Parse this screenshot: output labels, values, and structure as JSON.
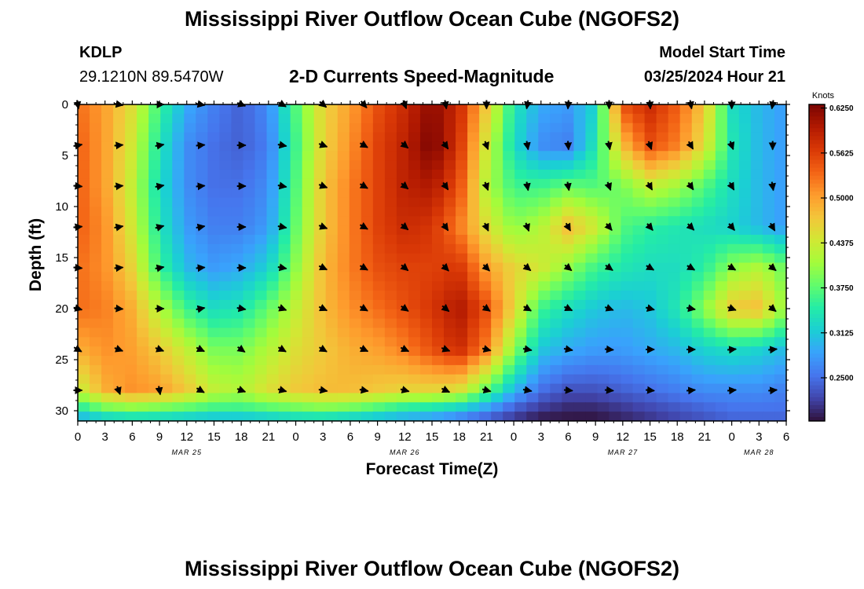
{
  "page": {
    "title_top": "Mississippi River Outflow Ocean Cube (NGOFS2)",
    "title_bottom": "Mississippi River Outflow Ocean Cube (NGOFS2)",
    "station_id": "KDLP",
    "station_coords": "29.1210N  89.5470W",
    "plot_subtitle": "2-D Currents Speed-Magnitude",
    "model_start_label": "Model Start Time",
    "model_start_value": "03/25/2024 Hour 21"
  },
  "chart_data": {
    "type": "heatmap",
    "title": "2-D Currents Speed-Magnitude",
    "xlabel": "Forecast Time(Z)",
    "ylabel": "Depth (ft)",
    "x_ticks": [
      "0",
      "3",
      "6",
      "9",
      "12",
      "15",
      "18",
      "21",
      "0",
      "3",
      "6",
      "9",
      "12",
      "15",
      "18",
      "21",
      "0",
      "3",
      "6",
      "9",
      "12",
      "15",
      "18",
      "21",
      "0",
      "3",
      "6"
    ],
    "date_labels": [
      {
        "text": "MAR 25",
        "tick_index": 4
      },
      {
        "text": "MAR 26",
        "tick_index": 12
      },
      {
        "text": "MAR 27",
        "tick_index": 20
      },
      {
        "text": "MAR 28",
        "tick_index": 25
      }
    ],
    "x_hours_range": [
      0,
      78
    ],
    "y_ticks": [
      0,
      5,
      10,
      15,
      20,
      25,
      30
    ],
    "ylim": [
      0,
      31
    ],
    "y_inverted": true,
    "colorbar": {
      "unit": "Knots",
      "range": [
        0.19,
        0.63
      ],
      "ticks": [
        "0.6250",
        "0.5625",
        "0.5000",
        "0.4375",
        "0.3750",
        "0.3125",
        "0.2500"
      ],
      "tick_values": [
        0.625,
        0.5625,
        0.5,
        0.4375,
        0.375,
        0.3125,
        0.25
      ],
      "colors": [
        "#30123b",
        "#4145ab",
        "#4675ed",
        "#39a2fc",
        "#1bcfd4",
        "#24eca6",
        "#61fc6c",
        "#a4fc3b",
        "#d1e834",
        "#f3c63a",
        "#fe9b2d",
        "#f36315",
        "#d93806",
        "#b11901",
        "#7a0402"
      ]
    },
    "speed_field": {
      "description": "Current speed (knots) at depth rows x forecast hour columns",
      "depths": [
        0,
        4,
        8,
        12,
        16,
        20,
        24,
        28,
        30,
        31
      ],
      "hours": [
        0,
        3,
        6,
        9,
        12,
        15,
        18,
        21,
        24,
        27,
        30,
        33,
        36,
        39,
        42,
        45,
        48,
        51,
        54,
        57,
        60,
        63,
        66,
        69,
        72,
        75,
        78
      ],
      "values": [
        [
          0.53,
          0.5,
          0.45,
          0.36,
          0.29,
          0.26,
          0.24,
          0.27,
          0.37,
          0.46,
          0.5,
          0.55,
          0.58,
          0.62,
          0.58,
          0.47,
          0.34,
          0.29,
          0.28,
          0.32,
          0.55,
          0.58,
          0.54,
          0.47,
          0.33,
          0.3,
          0.28
        ],
        [
          0.54,
          0.5,
          0.44,
          0.34,
          0.27,
          0.25,
          0.24,
          0.26,
          0.36,
          0.46,
          0.51,
          0.56,
          0.59,
          0.63,
          0.57,
          0.44,
          0.33,
          0.27,
          0.26,
          0.34,
          0.48,
          0.55,
          0.52,
          0.45,
          0.34,
          0.3,
          0.28
        ],
        [
          0.54,
          0.5,
          0.43,
          0.33,
          0.27,
          0.25,
          0.25,
          0.27,
          0.37,
          0.47,
          0.52,
          0.56,
          0.59,
          0.6,
          0.55,
          0.42,
          0.36,
          0.36,
          0.38,
          0.37,
          0.39,
          0.43,
          0.41,
          0.37,
          0.33,
          0.3,
          0.28
        ],
        [
          0.54,
          0.51,
          0.44,
          0.34,
          0.28,
          0.26,
          0.26,
          0.28,
          0.38,
          0.47,
          0.52,
          0.56,
          0.58,
          0.57,
          0.52,
          0.45,
          0.4,
          0.42,
          0.48,
          0.44,
          0.37,
          0.35,
          0.34,
          0.33,
          0.32,
          0.3,
          0.28
        ],
        [
          0.53,
          0.51,
          0.46,
          0.36,
          0.3,
          0.28,
          0.29,
          0.32,
          0.4,
          0.48,
          0.52,
          0.55,
          0.56,
          0.56,
          0.57,
          0.5,
          0.46,
          0.44,
          0.4,
          0.36,
          0.34,
          0.33,
          0.33,
          0.35,
          0.4,
          0.42,
          0.38
        ],
        [
          0.53,
          0.52,
          0.49,
          0.42,
          0.36,
          0.33,
          0.34,
          0.38,
          0.43,
          0.48,
          0.51,
          0.53,
          0.55,
          0.57,
          0.6,
          0.55,
          0.46,
          0.36,
          0.33,
          0.31,
          0.3,
          0.31,
          0.34,
          0.4,
          0.47,
          0.48,
          0.4
        ],
        [
          0.49,
          0.51,
          0.5,
          0.47,
          0.43,
          0.39,
          0.39,
          0.42,
          0.45,
          0.47,
          0.49,
          0.5,
          0.52,
          0.55,
          0.58,
          0.52,
          0.4,
          0.31,
          0.29,
          0.28,
          0.28,
          0.29,
          0.3,
          0.32,
          0.33,
          0.32,
          0.3
        ],
        [
          0.43,
          0.49,
          0.51,
          0.5,
          0.47,
          0.43,
          0.42,
          0.45,
          0.47,
          0.48,
          0.48,
          0.47,
          0.46,
          0.46,
          0.45,
          0.38,
          0.3,
          0.25,
          0.23,
          0.23,
          0.24,
          0.25,
          0.26,
          0.27,
          0.27,
          0.27,
          0.26
        ],
        [
          0.33,
          0.37,
          0.38,
          0.37,
          0.36,
          0.35,
          0.35,
          0.36,
          0.37,
          0.38,
          0.37,
          0.35,
          0.33,
          0.32,
          0.3,
          0.27,
          0.23,
          0.21,
          0.2,
          0.2,
          0.21,
          0.22,
          0.23,
          0.24,
          0.25,
          0.25,
          0.25
        ],
        [
          0.28,
          0.3,
          0.31,
          0.31,
          0.3,
          0.29,
          0.29,
          0.3,
          0.31,
          0.31,
          0.3,
          0.29,
          0.28,
          0.27,
          0.25,
          0.23,
          0.21,
          0.19,
          0.19,
          0.19,
          0.2,
          0.21,
          0.22,
          0.23,
          0.24,
          0.24,
          0.24
        ]
      ]
    },
    "vector_field": {
      "description": "Current direction arrows (degrees, math angle, 0=east, negative=pointing down-screen) at sampled depth/hour",
      "depths": [
        0,
        4,
        8,
        12,
        16,
        20,
        24,
        28
      ],
      "hours": [
        0,
        4.5,
        9,
        13.5,
        18,
        22.5,
        27,
        31.5,
        36,
        40.5,
        45,
        49.5,
        54,
        58.5,
        63,
        67.5,
        72,
        76.5
      ],
      "angles": [
        [
          -80,
          -10,
          0,
          -10,
          -20,
          -30,
          -40,
          -50,
          -70,
          -80,
          -90,
          -100,
          -95,
          -90,
          -85,
          -80,
          -90,
          -100
        ],
        [
          10,
          5,
          10,
          5,
          0,
          -10,
          -20,
          -30,
          -40,
          -55,
          -70,
          -80,
          -85,
          -80,
          -70,
          -60,
          -70,
          -90
        ],
        [
          -5,
          5,
          10,
          5,
          0,
          -10,
          -20,
          -30,
          -40,
          -55,
          -70,
          -80,
          -80,
          -70,
          -60,
          -55,
          -60,
          -80
        ],
        [
          5,
          10,
          15,
          10,
          0,
          -10,
          -20,
          -30,
          -40,
          -55,
          -65,
          -70,
          -60,
          -50,
          -50,
          -45,
          -50,
          -60
        ],
        [
          -5,
          5,
          10,
          5,
          0,
          -10,
          -25,
          -30,
          -40,
          -45,
          -45,
          -40,
          -40,
          -35,
          -30,
          -30,
          -30,
          -40
        ],
        [
          -15,
          -5,
          0,
          10,
          -10,
          -20,
          -25,
          -30,
          -35,
          -40,
          -35,
          -30,
          -25,
          -20,
          -15,
          -10,
          -20,
          -40
        ],
        [
          -30,
          -20,
          -20,
          -25,
          -35,
          -30,
          -30,
          -25,
          -25,
          -20,
          -15,
          -10,
          -10,
          -5,
          0,
          0,
          5,
          5
        ],
        [
          0,
          -70,
          -80,
          -30,
          -20,
          -15,
          -10,
          -10,
          -15,
          -25,
          -15,
          -10,
          -5,
          -5,
          -5,
          5,
          5,
          5
        ]
      ]
    }
  }
}
